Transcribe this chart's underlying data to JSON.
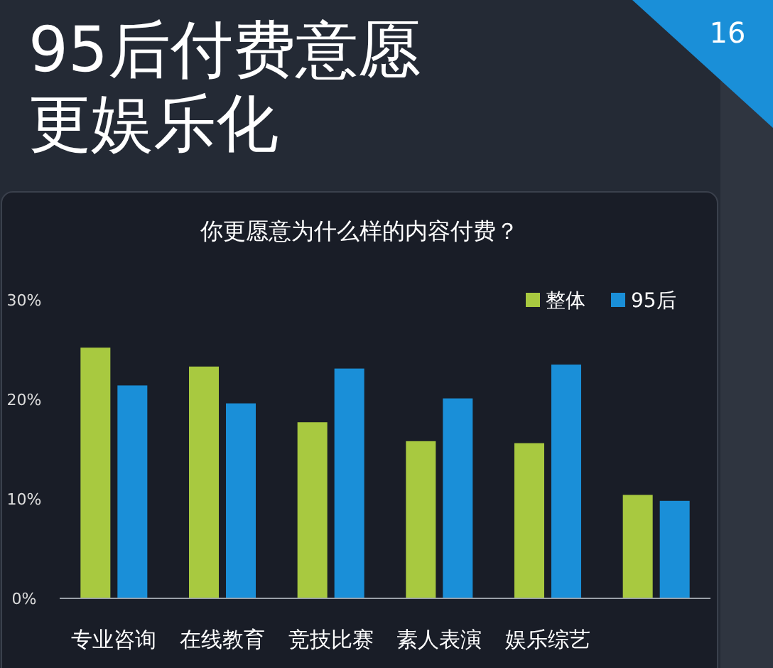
{
  "chart_data": {
    "type": "bar",
    "title": "95后付费意愿更娱乐化",
    "subtitle": "你更愿意为什么样的内容付费？",
    "annotations": [
      "16"
    ],
    "categories": [
      "专业咨询",
      "在线教育",
      "竞技比赛",
      "素人表演",
      "娱乐综艺",
      null
    ],
    "series": [
      {
        "name": "整体",
        "color": "#a8c940",
        "values": [
          25.2,
          23.3,
          17.7,
          15.8,
          15.6,
          10.4
        ]
      },
      {
        "name": "95后",
        "color": "#1a8fd8",
        "values": [
          21.4,
          19.6,
          23.1,
          20.1,
          23.5,
          9.8
        ]
      }
    ],
    "ylim": [
      0,
      30
    ],
    "yticks": [
      {
        "value": 0,
        "label": "0%"
      },
      {
        "value": 10,
        "label": "10%"
      },
      {
        "value": 20,
        "label": "20%"
      },
      {
        "value": 30,
        "label": "30%"
      }
    ],
    "legend": "top right"
  }
}
